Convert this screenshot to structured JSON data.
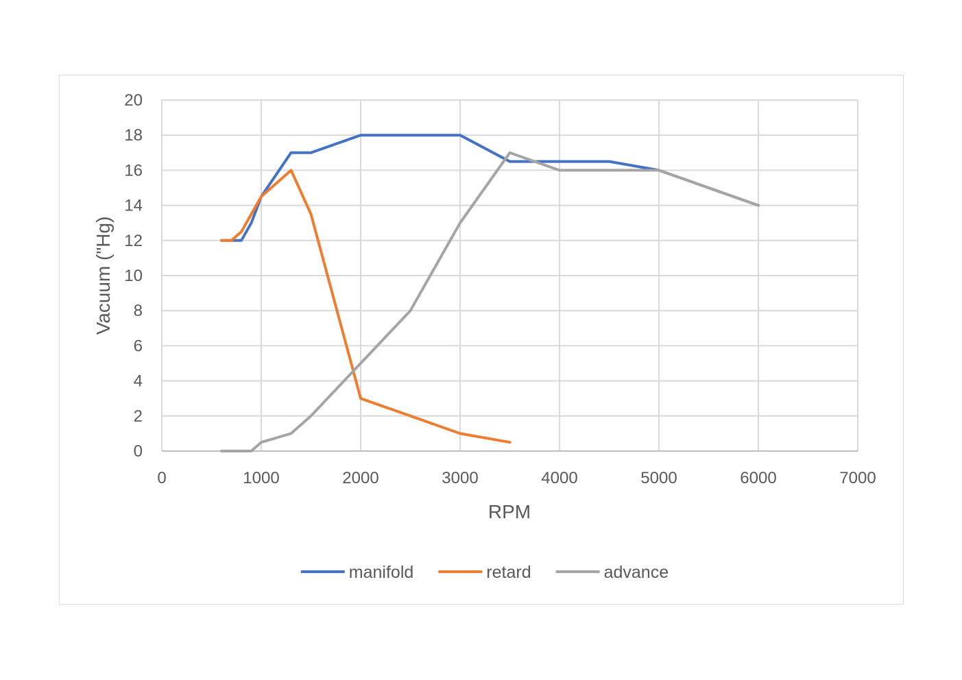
{
  "chart_data": {
    "type": "line",
    "title": "",
    "xlabel": "RPM",
    "ylabel": "Vacuum (\"Hg)",
    "xlim": [
      0,
      7000
    ],
    "ylim": [
      0,
      20
    ],
    "xticks": [
      0,
      1000,
      2000,
      3000,
      4000,
      5000,
      6000,
      7000
    ],
    "yticks": [
      0,
      2,
      4,
      6,
      8,
      10,
      12,
      14,
      16,
      18,
      20
    ],
    "xtick_labels": [
      "0",
      "1000",
      "2000",
      "3000",
      "4000",
      "5000",
      "6000",
      "7000"
    ],
    "ytick_labels": [
      "0",
      "2",
      "4",
      "6",
      "8",
      "10",
      "12",
      "14",
      "16",
      "18",
      "20"
    ],
    "grid": true,
    "legend_position": "bottom",
    "series": [
      {
        "name": "manifold",
        "color": "#4472c4",
        "x": [
          600,
          700,
          800,
          900,
          1000,
          1300,
          1500,
          2000,
          2500,
          3000,
          3500,
          4000,
          4500,
          5000,
          6000
        ],
        "y": [
          12,
          12,
          12,
          13,
          14.5,
          17,
          17,
          18,
          18,
          18,
          16.5,
          16.5,
          16.5,
          16,
          14
        ]
      },
      {
        "name": "retard",
        "color": "#ed7d31",
        "x": [
          600,
          700,
          800,
          900,
          1000,
          1300,
          1500,
          2000,
          2500,
          3000,
          3500
        ],
        "y": [
          12,
          12,
          12.5,
          13.5,
          14.5,
          16,
          13.5,
          3,
          2,
          1,
          0.5
        ]
      },
      {
        "name": "advance",
        "color": "#a5a5a5",
        "x": [
          600,
          700,
          800,
          900,
          1000,
          1300,
          1500,
          2000,
          2500,
          3000,
          3500,
          4000,
          4500,
          5000,
          6000
        ],
        "y": [
          0,
          0,
          0,
          0,
          0.5,
          1,
          2,
          5,
          8,
          13,
          17,
          16,
          16,
          16,
          14
        ]
      }
    ]
  }
}
